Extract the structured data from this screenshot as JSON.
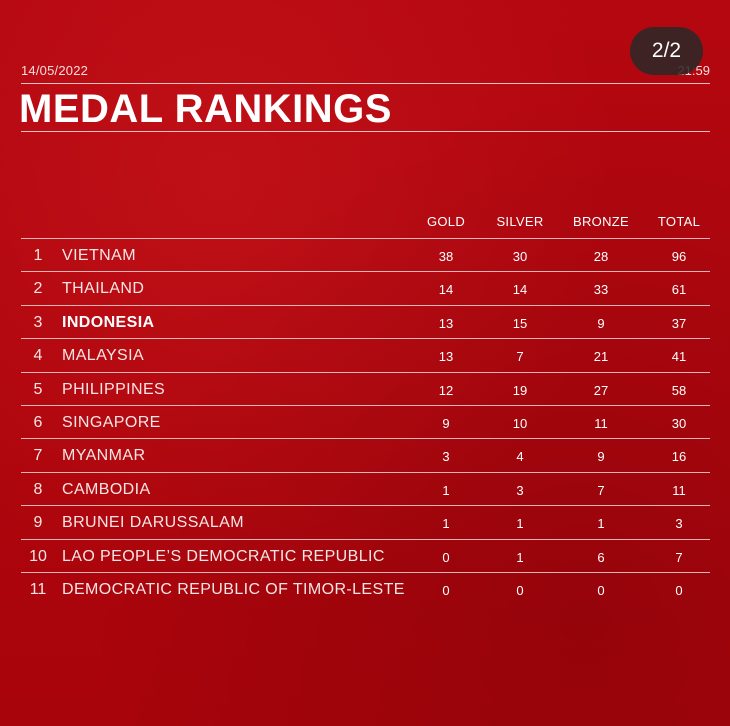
{
  "header": {
    "date": "14/05/2022",
    "time": "21:59",
    "title": "MEDAL RANKINGS",
    "page_indicator": "2/2"
  },
  "table": {
    "columns": [
      "GOLD",
      "SILVER",
      "BRONZE",
      "TOTAL"
    ],
    "rows": [
      {
        "rank": "1",
        "country": "VIETNAM",
        "gold": "38",
        "silver": "30",
        "bronze": "28",
        "total": "96"
      },
      {
        "rank": "2",
        "country": "THAILAND",
        "gold": "14",
        "silver": "14",
        "bronze": "33",
        "total": "61"
      },
      {
        "rank": "3",
        "country": "INDONESIA",
        "gold": "13",
        "silver": "15",
        "bronze": "9",
        "total": "37",
        "highlighted": true
      },
      {
        "rank": "4",
        "country": "MALAYSIA",
        "gold": "13",
        "silver": "7",
        "bronze": "21",
        "total": "41"
      },
      {
        "rank": "5",
        "country": "PHILIPPINES",
        "gold": "12",
        "silver": "19",
        "bronze": "27",
        "total": "58"
      },
      {
        "rank": "6",
        "country": "SINGAPORE",
        "gold": "9",
        "silver": "10",
        "bronze": "11",
        "total": "30"
      },
      {
        "rank": "7",
        "country": "MYANMAR",
        "gold": "3",
        "silver": "4",
        "bronze": "9",
        "total": "16"
      },
      {
        "rank": "8",
        "country": "CAMBODIA",
        "gold": "1",
        "silver": "3",
        "bronze": "7",
        "total": "11"
      },
      {
        "rank": "9",
        "country": "BRUNEI DARUSSALAM",
        "gold": "1",
        "silver": "1",
        "bronze": "1",
        "total": "3"
      },
      {
        "rank": "10",
        "country": "LAO PEOPLE’S DEMOCRATIC REPUBLIC",
        "gold": "0",
        "silver": "1",
        "bronze": "6",
        "total": "7"
      },
      {
        "rank": "11",
        "country": "DEMOCRATIC REPUBLIC OF TIMOR-LESTE",
        "gold": "0",
        "silver": "0",
        "bronze": "0",
        "total": "0"
      }
    ]
  },
  "colors": {
    "background": "#b0050c",
    "text": "#ffffff",
    "pill": "#2d2828"
  }
}
